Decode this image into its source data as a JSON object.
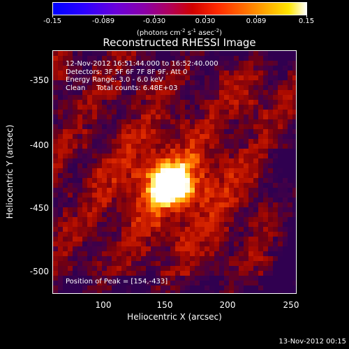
{
  "colorbar": {
    "ticks": [
      "-0.15",
      "-0.089",
      "-0.030",
      "0.030",
      "0.089",
      "0.15"
    ],
    "units_prefix": "(photons cm",
    "units_exp1": "-2",
    "units_mid": " s",
    "units_exp2": "-1",
    "units_mid2": " asec",
    "units_exp3": "-2",
    "units_suffix": ")"
  },
  "plot": {
    "title": "Reconstructed RHESSI Image",
    "info_lines": [
      "12-Nov-2012 16:51:44.000 to 16:52:40.000",
      "Detectors: 3F 5F 6F 7F 8F 9F, Att 0",
      "Energy Range: 3.0 - 6.0 keV",
      "Clean     Total counts: 6.48E+03"
    ],
    "peak_label": "Position of Peak = [154,-433]",
    "xlabel": "Heliocentric X (arcsec)",
    "ylabel": "Heliocentric Y (arcsec)",
    "xticks": [
      "100",
      "150",
      "200",
      "250"
    ],
    "yticks": [
      "-350",
      "-400",
      "-450",
      "-500"
    ],
    "timestamp": "13-Nov-2012 00:15"
  },
  "image_data": {
    "type": "heatmap",
    "xlim": [
      60,
      255
    ],
    "ylim": [
      -520,
      -327
    ],
    "peak": {
      "x": 154,
      "y": -433
    },
    "color_range": [
      -0.15,
      0.15
    ],
    "colormap": [
      "#0000ff",
      "#6b00d9",
      "#b0005a",
      "#d00000",
      "#ff6a00",
      "#ffe600",
      "#ffffff"
    ]
  }
}
